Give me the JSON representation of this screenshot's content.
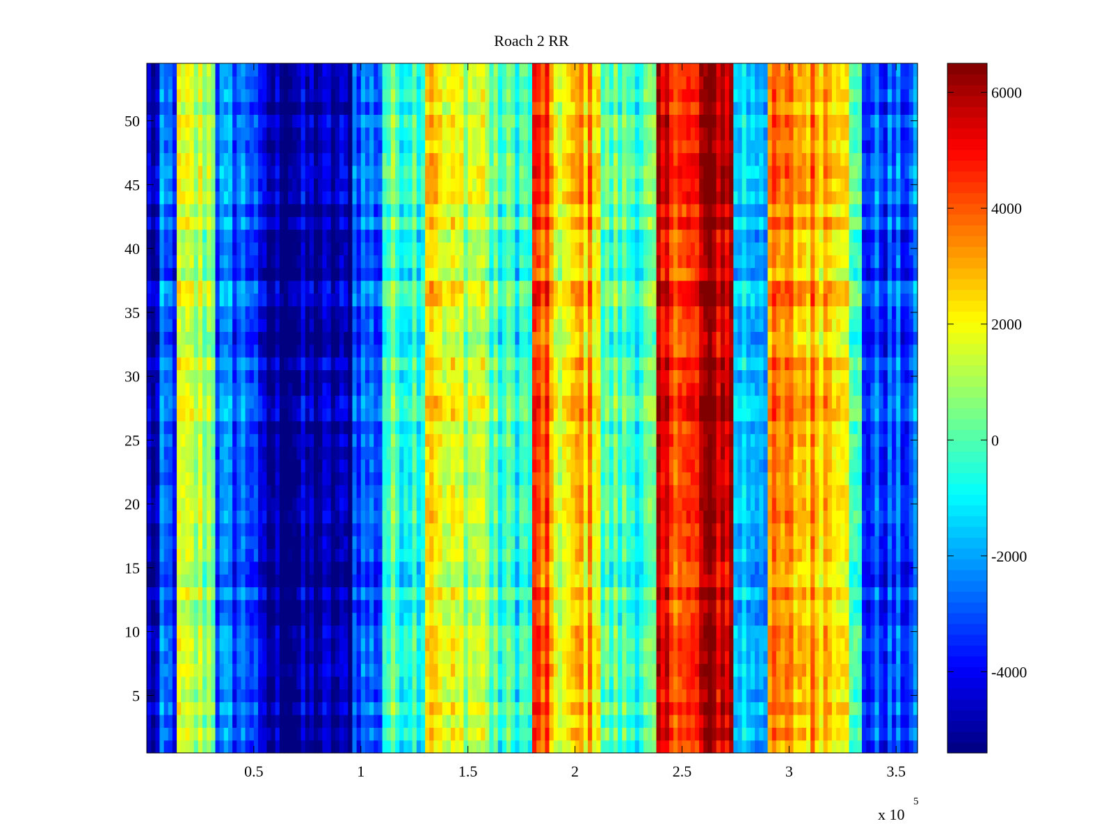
{
  "chart_data": {
    "type": "heatmap",
    "title": "Roach 2 RR",
    "xlabel": "",
    "ylabel": "",
    "xlim": [
      0,
      360000
    ],
    "ylim": [
      0.5,
      54.5
    ],
    "x_multiplier_label": "x 10",
    "x_multiplier_exponent": "5",
    "x_ticks": [
      {
        "value": 50000,
        "label": "0.5"
      },
      {
        "value": 100000,
        "label": "1"
      },
      {
        "value": 150000,
        "label": "1.5"
      },
      {
        "value": 200000,
        "label": "2"
      },
      {
        "value": 250000,
        "label": "2.5"
      },
      {
        "value": 300000,
        "label": "3"
      },
      {
        "value": 350000,
        "label": "3.5"
      }
    ],
    "y_ticks": [
      {
        "value": 5,
        "label": "5"
      },
      {
        "value": 10,
        "label": "10"
      },
      {
        "value": 15,
        "label": "15"
      },
      {
        "value": 20,
        "label": "20"
      },
      {
        "value": 25,
        "label": "25"
      },
      {
        "value": 30,
        "label": "30"
      },
      {
        "value": 35,
        "label": "35"
      },
      {
        "value": 40,
        "label": "40"
      },
      {
        "value": 45,
        "label": "45"
      },
      {
        "value": 50,
        "label": "50"
      }
    ],
    "rows": 54,
    "colorbar": {
      "colormap": "jet",
      "clim": [
        -5400,
        6500
      ],
      "ticks": [
        {
          "value": 6000,
          "label": "6000"
        },
        {
          "value": 4000,
          "label": "4000"
        },
        {
          "value": 2000,
          "label": "2000"
        },
        {
          "value": 0,
          "label": "0"
        },
        {
          "value": -2000,
          "label": "-2000"
        },
        {
          "value": -4000,
          "label": "-4000"
        }
      ]
    },
    "column_profile": [
      {
        "x_start": 0,
        "x_end": 7000,
        "value": -4800
      },
      {
        "x_start": 7000,
        "x_end": 15000,
        "value": -3200
      },
      {
        "x_start": 15000,
        "x_end": 32000,
        "value": 1000
      },
      {
        "x_start": 32000,
        "x_end": 52000,
        "value": -2800
      },
      {
        "x_start": 52000,
        "x_end": 96000,
        "value": -5100
      },
      {
        "x_start": 96000,
        "x_end": 110000,
        "value": -2800
      },
      {
        "x_start": 110000,
        "x_end": 130000,
        "value": -200
      },
      {
        "x_start": 130000,
        "x_end": 137000,
        "value": 3000
      },
      {
        "x_start": 137000,
        "x_end": 160000,
        "value": 1400
      },
      {
        "x_start": 160000,
        "x_end": 181000,
        "value": -400
      },
      {
        "x_start": 181000,
        "x_end": 188000,
        "value": 4000
      },
      {
        "x_start": 188000,
        "x_end": 200000,
        "value": 1800
      },
      {
        "x_start": 200000,
        "x_end": 212000,
        "value": 2800
      },
      {
        "x_start": 212000,
        "x_end": 238000,
        "value": -200
      },
      {
        "x_start": 238000,
        "x_end": 250000,
        "value": 4800
      },
      {
        "x_start": 250000,
        "x_end": 258000,
        "value": 4200
      },
      {
        "x_start": 258000,
        "x_end": 274000,
        "value": 5800
      },
      {
        "x_start": 274000,
        "x_end": 290000,
        "value": -1500
      },
      {
        "x_start": 290000,
        "x_end": 328000,
        "value": 3000
      },
      {
        "x_start": 328000,
        "x_end": 335000,
        "value": -600
      },
      {
        "x_start": 335000,
        "x_end": 360000,
        "value": -3200
      }
    ]
  }
}
